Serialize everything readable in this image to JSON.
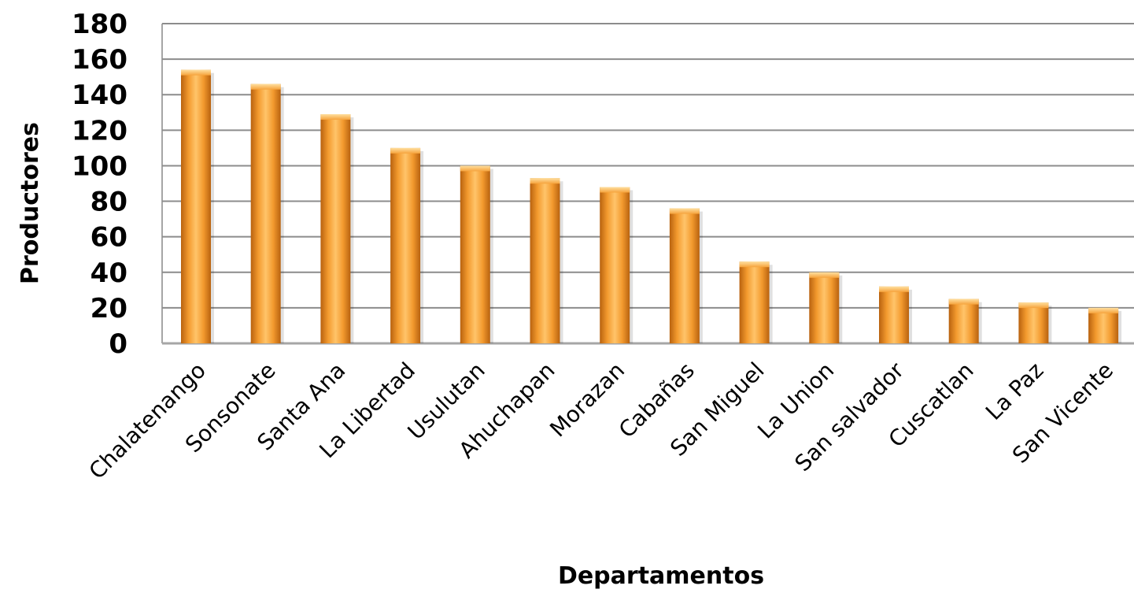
{
  "chart_data": {
    "type": "bar",
    "categories": [
      "Chalatenango",
      "Sonsonate",
      "Santa Ana",
      "La Libertad",
      "Usulutan",
      "Ahuchapan",
      "Morazan",
      "Cabañas",
      "San Miguel",
      "La Union",
      "San salvador",
      "Cuscatlan",
      "La Paz",
      "San Vicente"
    ],
    "values": [
      154,
      146,
      129,
      110,
      100,
      93,
      88,
      76,
      46,
      40,
      32,
      25,
      23,
      20
    ],
    "xlabel": "Departamentos",
    "ylabel": "Productores",
    "ylim": [
      0,
      180
    ],
    "yticks": [
      "0",
      "20",
      "40",
      "60",
      "80",
      "100",
      "120",
      "140",
      "160",
      "180"
    ],
    "grid": true,
    "legend": "none",
    "colors": {
      "bar_light": "#ffc46a",
      "bar_mid": "#f39a2e",
      "bar_dark": "#b8620f",
      "grid": "#8c8c8c",
      "axis": "#a6a6a6"
    }
  }
}
